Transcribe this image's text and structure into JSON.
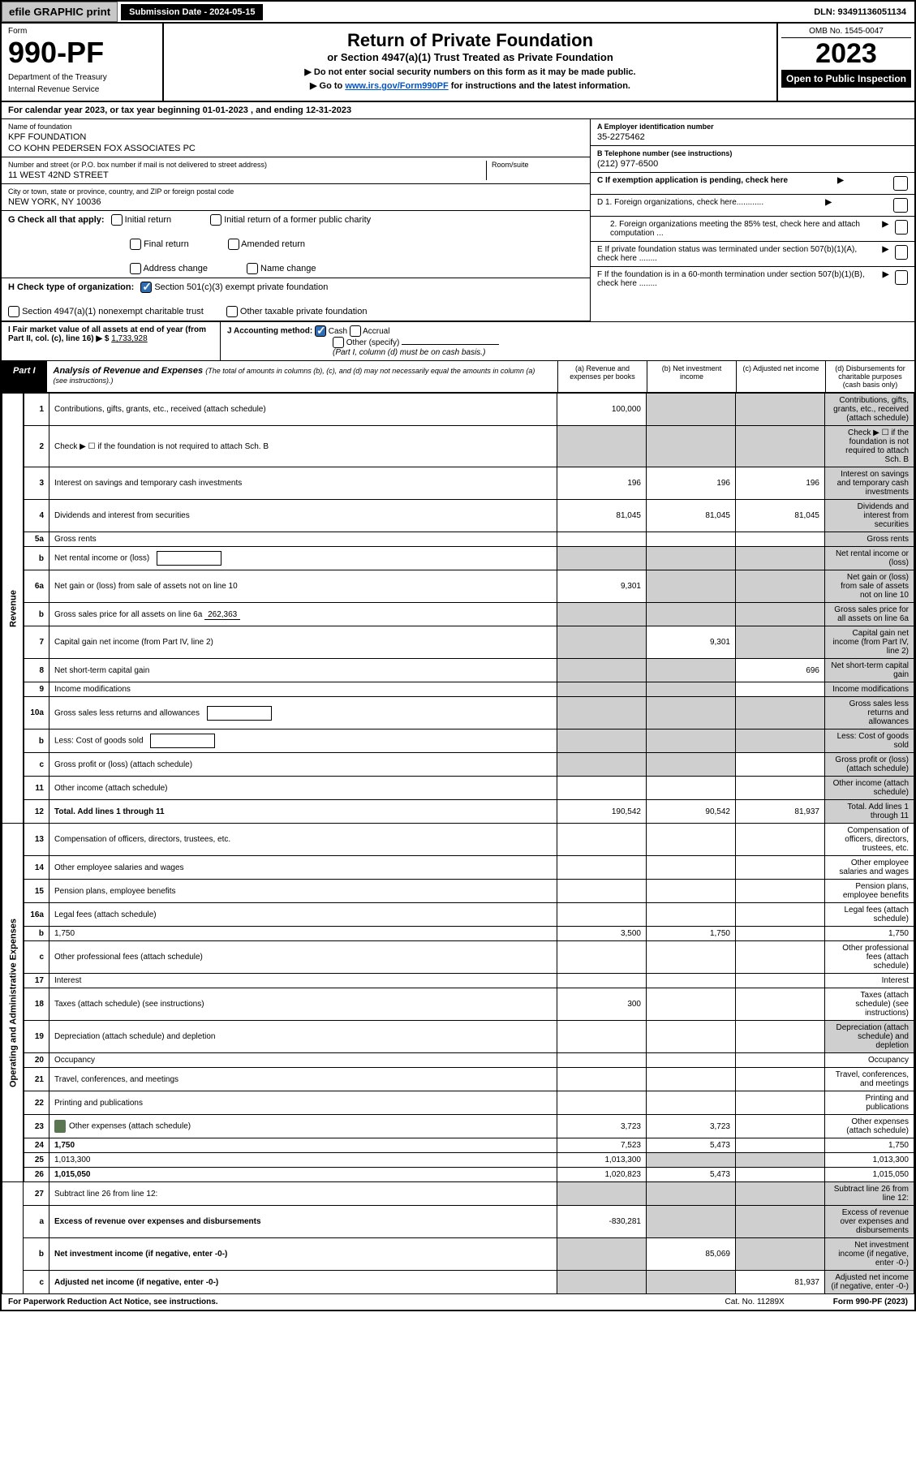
{
  "topbar": {
    "efile": "efile GRAPHIC print",
    "sub_date_label": "Submission Date - 2024-05-15",
    "dln": "DLN: 93491136051134"
  },
  "header": {
    "form_word": "Form",
    "form_no": "990-PF",
    "dept1": "Department of the Treasury",
    "dept2": "Internal Revenue Service",
    "title": "Return of Private Foundation",
    "subtitle": "or Section 4947(a)(1) Trust Treated as Private Foundation",
    "instr1": "▶ Do not enter social security numbers on this form as it may be made public.",
    "instr2_pre": "▶ Go to ",
    "instr2_link": "www.irs.gov/Form990PF",
    "instr2_post": " for instructions and the latest information.",
    "omb": "OMB No. 1545-0047",
    "year": "2023",
    "open": "Open to Public Inspection"
  },
  "cal_year": {
    "text_pre": "For calendar year 2023, or tax year beginning ",
    "begin": "01-01-2023",
    "mid": " , and ending ",
    "end": "12-31-2023"
  },
  "ident": {
    "name_label": "Name of foundation",
    "name1": "KPF FOUNDATION",
    "name2": "CO KOHN PEDERSEN FOX ASSOCIATES PC",
    "addr_label": "Number and street (or P.O. box number if mail is not delivered to street address)",
    "addr": "11 WEST 42ND STREET",
    "room_label": "Room/suite",
    "city_label": "City or town, state or province, country, and ZIP or foreign postal code",
    "city": "NEW YORK, NY  10036",
    "ein_label": "A Employer identification number",
    "ein": "35-2275462",
    "phone_label": "B Telephone number (see instructions)",
    "phone": "(212) 977-6500",
    "c_label": "C If exemption application is pending, check here",
    "d1": "D 1. Foreign organizations, check here............",
    "d2": "2. Foreign organizations meeting the 85% test, check here and attach computation ...",
    "e": "E  If private foundation status was terminated under section 507(b)(1)(A), check here ........",
    "f": "F  If the foundation is in a 60-month termination under section 507(b)(1)(B), check here ........"
  },
  "g": {
    "label": "G Check all that apply:",
    "opts": [
      "Initial return",
      "Final return",
      "Address change",
      "Initial return of a former public charity",
      "Amended return",
      "Name change"
    ]
  },
  "h": {
    "label": "H Check type of organization:",
    "opt1": "Section 501(c)(3) exempt private foundation",
    "opt2": "Section 4947(a)(1) nonexempt charitable trust",
    "opt3": "Other taxable private foundation"
  },
  "i": {
    "label": "I Fair market value of all assets at end of year (from Part II, col. (c), line 16)",
    "arrow": "▶ $",
    "val": "1,733,928"
  },
  "j": {
    "label": "J Accounting method:",
    "cash": "Cash",
    "accrual": "Accrual",
    "other": "Other (specify)",
    "note": "(Part I, column (d) must be on cash basis.)"
  },
  "part1": {
    "badge": "Part I",
    "title": "Analysis of Revenue and Expenses",
    "note": "(The total of amounts in columns (b), (c), and (d) may not necessarily equal the amounts in column (a) (see instructions).)",
    "col_a": "(a)  Revenue and expenses per books",
    "col_b": "(b)  Net investment income",
    "col_c": "(c)  Adjusted net income",
    "col_d": "(d)  Disbursements for charitable purposes (cash basis only)"
  },
  "side": {
    "revenue": "Revenue",
    "expenses": "Operating and Administrative Expenses"
  },
  "rows": [
    {
      "n": "1",
      "d": "Contributions, gifts, grants, etc., received (attach schedule)",
      "a": "100,000",
      "b_sh": true,
      "c_sh": true,
      "d_sh": true
    },
    {
      "n": "2",
      "d": "Check ▶ ☐ if the foundation is not required to attach Sch. B",
      "a_sh": true,
      "b_sh": true,
      "c_sh": true,
      "d_sh": true,
      "is_not_bold": true
    },
    {
      "n": "3",
      "d": "Interest on savings and temporary cash investments",
      "a": "196",
      "b": "196",
      "c": "196",
      "d_sh": true
    },
    {
      "n": "4",
      "d": "Dividends and interest from securities",
      "a": "81,045",
      "b": "81,045",
      "c": "81,045",
      "d_sh": true
    },
    {
      "n": "5a",
      "d": "Gross rents",
      "d_sh": true
    },
    {
      "n": "b",
      "d": "Net rental income or (loss)",
      "inline_box": true,
      "a_sh": true,
      "b_sh": true,
      "c_sh": true,
      "d_sh": true
    },
    {
      "n": "6a",
      "d": "Net gain or (loss) from sale of assets not on line 10",
      "a": "9,301",
      "b_sh": true,
      "c_sh": true,
      "d_sh": true
    },
    {
      "n": "b",
      "d": "Gross sales price for all assets on line 6a",
      "inline_val": "262,363",
      "a_sh": true,
      "b_sh": true,
      "c_sh": true,
      "d_sh": true
    },
    {
      "n": "7",
      "d": "Capital gain net income (from Part IV, line 2)",
      "a_sh": true,
      "b": "9,301",
      "c_sh": true,
      "d_sh": true
    },
    {
      "n": "8",
      "d": "Net short-term capital gain",
      "a_sh": true,
      "b_sh": true,
      "c": "696",
      "d_sh": true
    },
    {
      "n": "9",
      "d": "Income modifications",
      "a_sh": true,
      "b_sh": true,
      "d_sh": true
    },
    {
      "n": "10a",
      "d": "Gross sales less returns and allowances",
      "inline_box": true,
      "a_sh": true,
      "b_sh": true,
      "c_sh": true,
      "d_sh": true
    },
    {
      "n": "b",
      "d": "Less: Cost of goods sold",
      "inline_box": true,
      "a_sh": true,
      "b_sh": true,
      "c_sh": true,
      "d_sh": true
    },
    {
      "n": "c",
      "d": "Gross profit or (loss) (attach schedule)",
      "a_sh": true,
      "b_sh": true,
      "d_sh": true
    },
    {
      "n": "11",
      "d": "Other income (attach schedule)",
      "d_sh": true
    },
    {
      "n": "12",
      "d": "Total. Add lines 1 through 11",
      "bold": true,
      "a": "190,542",
      "b": "90,542",
      "c": "81,937",
      "d_sh": true
    }
  ],
  "exp_rows": [
    {
      "n": "13",
      "d": "Compensation of officers, directors, trustees, etc."
    },
    {
      "n": "14",
      "d": "Other employee salaries and wages"
    },
    {
      "n": "15",
      "d": "Pension plans, employee benefits"
    },
    {
      "n": "16a",
      "d": "Legal fees (attach schedule)"
    },
    {
      "n": "b",
      "d": "1,750",
      "a": "3,500",
      "b": "1,750"
    },
    {
      "n": "c",
      "d": "Other professional fees (attach schedule)"
    },
    {
      "n": "17",
      "d": "Interest"
    },
    {
      "n": "18",
      "d": "Taxes (attach schedule) (see instructions)",
      "a": "300"
    },
    {
      "n": "19",
      "d": "Depreciation (attach schedule) and depletion",
      "d_sh": true
    },
    {
      "n": "20",
      "d": "Occupancy"
    },
    {
      "n": "21",
      "d": "Travel, conferences, and meetings"
    },
    {
      "n": "22",
      "d": "Printing and publications"
    },
    {
      "n": "23",
      "d": "Other expenses (attach schedule)",
      "icon": true,
      "a": "3,723",
      "b": "3,723"
    },
    {
      "n": "24",
      "d": "1,750",
      "bold": true,
      "a": "7,523",
      "b": "5,473"
    },
    {
      "n": "25",
      "d": "1,013,300",
      "a": "1,013,300",
      "b_sh": true,
      "c_sh": true
    },
    {
      "n": "26",
      "d": "1,015,050",
      "bold": true,
      "a": "1,020,823",
      "b": "5,473"
    }
  ],
  "final_rows": [
    {
      "n": "27",
      "d": "Subtract line 26 from line 12:",
      "a_sh": true,
      "b_sh": true,
      "c_sh": true,
      "d_sh": true
    },
    {
      "n": "a",
      "d": "Excess of revenue over expenses and disbursements",
      "bold": true,
      "a": "-830,281",
      "b_sh": true,
      "c_sh": true,
      "d_sh": true
    },
    {
      "n": "b",
      "d": "Net investment income (if negative, enter -0-)",
      "bold": true,
      "a_sh": true,
      "b": "85,069",
      "c_sh": true,
      "d_sh": true
    },
    {
      "n": "c",
      "d": "Adjusted net income (if negative, enter -0-)",
      "bold": true,
      "a_sh": true,
      "b_sh": true,
      "c": "81,937",
      "d_sh": true
    }
  ],
  "footer": {
    "pra": "For Paperwork Reduction Act Notice, see instructions.",
    "cat": "Cat. No. 11289X",
    "form": "Form 990-PF (2023)"
  }
}
